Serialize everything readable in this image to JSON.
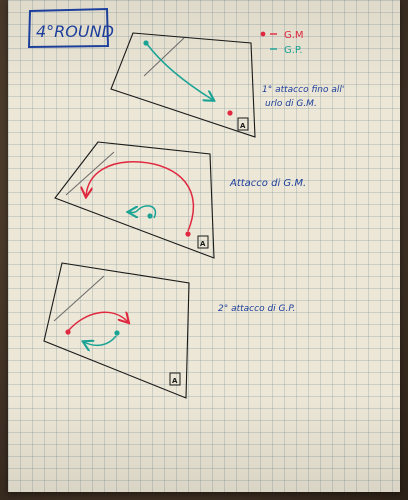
{
  "title": "4°ROUND",
  "legend": {
    "red_label": "G.M",
    "teal_label": "G.P."
  },
  "diagrams": [
    {
      "caption_line1": "1° attacco fino all'",
      "caption_line2": "urlo di G.M."
    },
    {
      "caption_line1": "Attacco di G.M."
    },
    {
      "caption_line1": "2° attacco di G.P."
    }
  ],
  "colors": {
    "red": "#e02840",
    "teal": "#1aa395",
    "blue": "#1d3f9c",
    "paper": "#ece7d6"
  }
}
